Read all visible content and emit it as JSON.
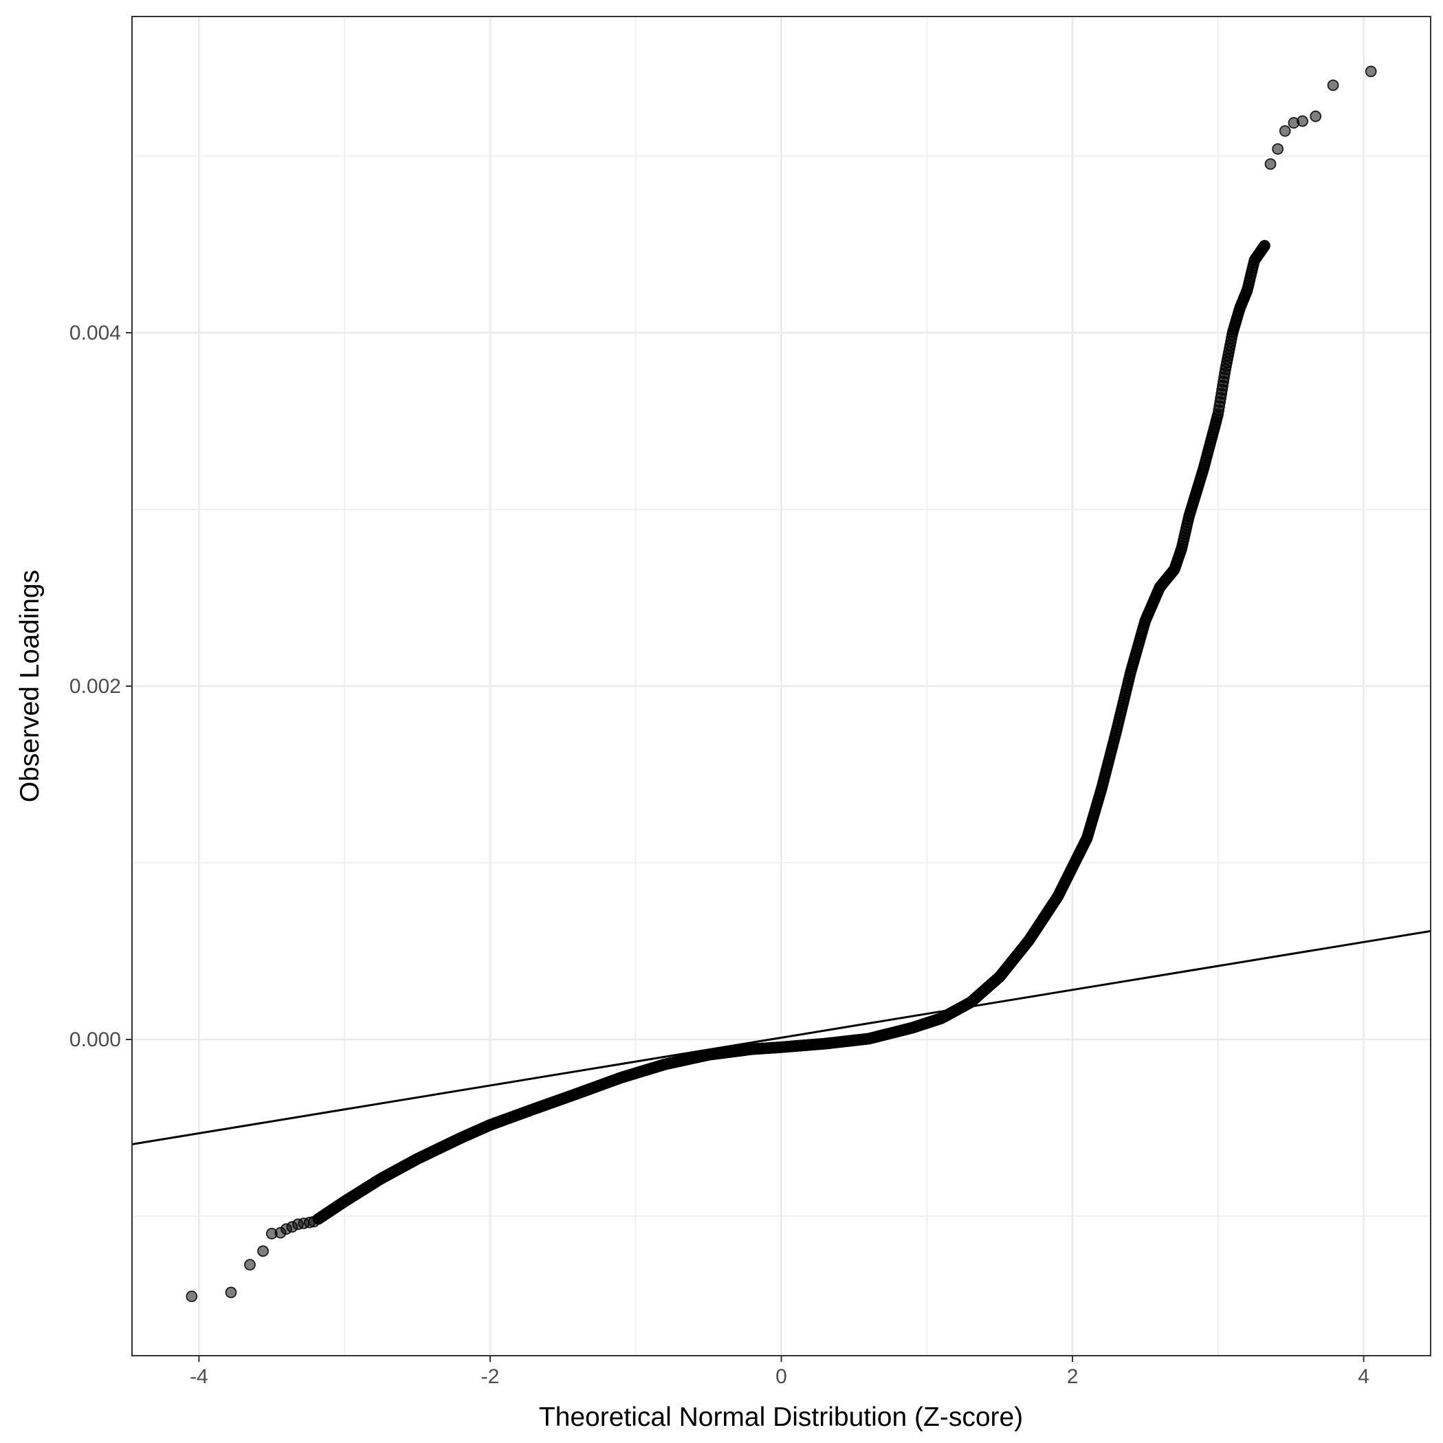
{
  "chart_data": {
    "type": "scatter",
    "title": "",
    "xlabel": "Theoretical Normal Distribution (Z-score)",
    "ylabel": "Observed Loadings",
    "xlim": [
      -4.46,
      4.46
    ],
    "ylim": [
      -0.00179,
      0.00579
    ],
    "x_ticks": [
      -4,
      -2,
      0,
      2,
      4
    ],
    "x_tick_labels": [
      "-4",
      "-2",
      "0",
      "2",
      "4"
    ],
    "y_ticks": [
      0.0,
      0.002,
      0.004
    ],
    "y_tick_labels": [
      "0.000",
      "0.002",
      "0.004"
    ],
    "grid": true,
    "reference_line": {
      "slope": 0.0001353,
      "intercept": 1e-05,
      "color": "#000000"
    },
    "point_color": "#000000",
    "point_opacity": 0.5,
    "tail_points": {
      "x": [
        -4.05,
        -3.78,
        -3.65,
        -3.56,
        -3.5,
        -3.44,
        -3.4,
        -3.36,
        -3.32,
        -3.28,
        -3.24,
        -3.21,
        -3.18,
        3.36,
        3.41,
        3.46,
        3.52,
        3.58,
        3.67,
        3.79,
        4.05
      ],
      "y": [
        -0.001454,
        -0.001432,
        -0.001275,
        -0.001198,
        -0.001099,
        -0.001094,
        -0.001073,
        -0.001061,
        -0.001046,
        -0.001041,
        -0.001036,
        -0.001031,
        -0.001016,
        0.004955,
        0.00504,
        0.005142,
        0.005188,
        0.005198,
        0.005225,
        0.005401,
        0.005479
      ]
    },
    "curve_knots": {
      "x": [
        -3.18,
        -3.0,
        -2.75,
        -2.5,
        -2.2,
        -2.0,
        -1.7,
        -1.4,
        -1.1,
        -0.8,
        -0.5,
        -0.2,
        0.0,
        0.3,
        0.6,
        0.9,
        1.1,
        1.3,
        1.5,
        1.7,
        1.9,
        2.1,
        2.2,
        2.3,
        2.4,
        2.5,
        2.6,
        2.7,
        2.75,
        2.8,
        2.9,
        3.0,
        3.05,
        3.1,
        3.15,
        3.2,
        3.25,
        3.32
      ],
      "y": [
        -0.001016,
        -0.000917,
        -0.000788,
        -0.000676,
        -0.000557,
        -0.000484,
        -0.000394,
        -0.000306,
        -0.000216,
        -0.000141,
        -8.7e-05,
        -5.5e-05,
        -4.4e-05,
        -2.4e-05,
        4e-06,
        6.6e-05,
        0.00012,
        0.00021,
        0.000355,
        0.00056,
        0.00081,
        0.00114,
        0.00142,
        0.00174,
        0.00208,
        0.00237,
        0.00256,
        0.00266,
        0.00278,
        0.00296,
        0.00323,
        0.00354,
        0.00379,
        0.004,
        0.00414,
        0.00424,
        0.00441,
        0.004493
      ]
    }
  }
}
